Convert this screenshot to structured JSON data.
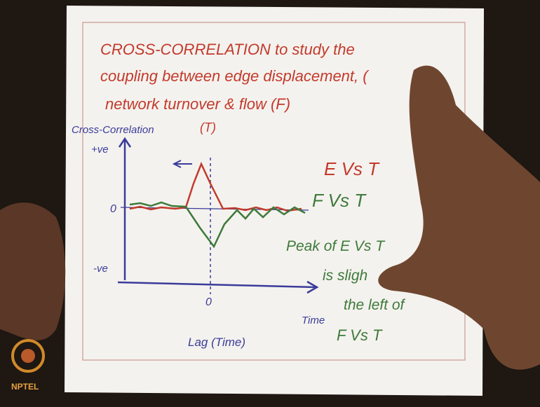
{
  "heading": {
    "lines": [
      "CROSS-CORRELATION to study the",
      "coupling between edge displacement, (",
      "network turnover & flow (F)"
    ],
    "tag": "(T)"
  },
  "sketch": {
    "y_label": "Cross-Correlation",
    "y_top": "+ve",
    "y_zero": "0",
    "y_bottom": "-ve",
    "x_zero": "0",
    "x_label": "Time",
    "x_caption": "Lag (Time)"
  },
  "notes": {
    "legend": [
      "E Vs T",
      "F Vs T"
    ],
    "remark": [
      "Peak of E Vs T",
      "is sligh",
      "the left of",
      "F Vs T"
    ]
  },
  "logo": {
    "text": "NPTEL"
  }
}
